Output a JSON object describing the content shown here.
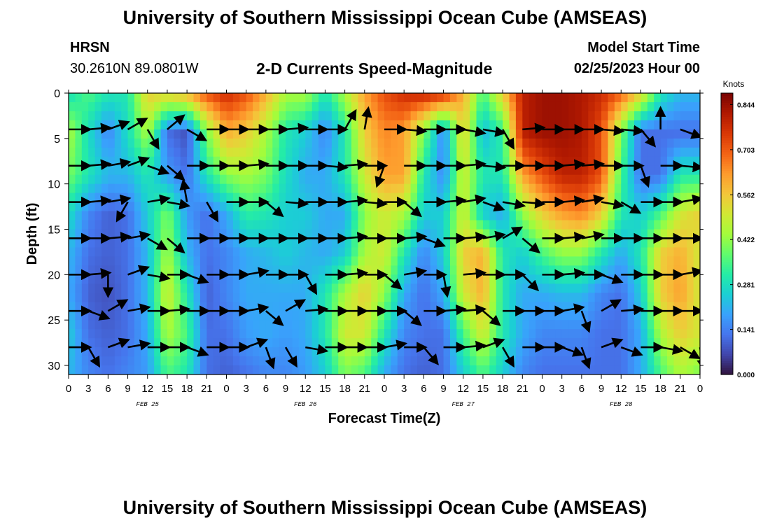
{
  "header": {
    "title": "University of Southern Mississippi Ocean Cube (AMSEAS)",
    "station": "HRSN",
    "coords": "30.2610N  89.0801W",
    "chart_title": "2-D Currents Speed-Magnitude",
    "model_label": "Model Start Time",
    "model_time": "02/25/2023 Hour 00"
  },
  "footer": {
    "title": "University of Southern Mississippi Ocean Cube (AMSEAS)"
  },
  "chart_data": {
    "type": "heatmap",
    "title": "2-D Currents Speed-Magnitude",
    "xlabel": "Forecast Time(Z)",
    "ylabel": "Depth (ft)",
    "x_range": [
      0,
      96
    ],
    "y_range": [
      0,
      31
    ],
    "x_ticks": [
      "0",
      "3",
      "6",
      "9",
      "12",
      "15",
      "18",
      "21",
      "0",
      "3",
      "6",
      "9",
      "12",
      "15",
      "18",
      "21",
      "0",
      "3",
      "6",
      "9",
      "12",
      "15",
      "18",
      "21",
      "0",
      "3",
      "6",
      "9",
      "12",
      "15",
      "18",
      "21",
      "0"
    ],
    "y_ticks": [
      "0",
      "5",
      "10",
      "15",
      "20",
      "25",
      "30"
    ],
    "date_labels": [
      {
        "label": "FEB 25",
        "hour": 12
      },
      {
        "label": "FEB 26",
        "hour": 36
      },
      {
        "label": "FEB 27",
        "hour": 60
      },
      {
        "label": "FEB 28",
        "hour": 84
      }
    ],
    "colorbar": {
      "unit": "Knots",
      "min": 0.0,
      "max": 0.88,
      "ticks": [
        "0.844",
        "0.703",
        "0.562",
        "0.422",
        "0.281",
        "0.141",
        "0.000"
      ],
      "tick_values": [
        0.844,
        0.703,
        0.562,
        0.422,
        0.281,
        0.141,
        0.0
      ]
    },
    "color_scale": [
      "#30123b",
      "#4145ab",
      "#4675ed",
      "#39a2fc",
      "#1bcfd4",
      "#24eca6",
      "#61fc6c",
      "#a4fc3b",
      "#d1e834",
      "#f3c63a",
      "#fe9b2d",
      "#f36315",
      "#d93806",
      "#b11901",
      "#7a0403"
    ],
    "arrow_color": "#000000",
    "vector_depths_ft": [
      4,
      8,
      12,
      16,
      20,
      24,
      28
    ],
    "speed_field_knots": [
      [
        0.28,
        0.36,
        0.3,
        0.3,
        0.55,
        0.55,
        0.6,
        0.72,
        0.78,
        0.72,
        0.6,
        0.45,
        0.45,
        0.3,
        0.45,
        0.62,
        0.72,
        0.78,
        0.8,
        0.78,
        0.6,
        0.35,
        0.55,
        0.8,
        0.84,
        0.84,
        0.82,
        0.78,
        0.7,
        0.55,
        0.3,
        0.22,
        0.22
      ],
      [
        0.45,
        0.28,
        0.15,
        0.28,
        0.45,
        0.12,
        0.08,
        0.4,
        0.6,
        0.55,
        0.45,
        0.3,
        0.25,
        0.15,
        0.3,
        0.55,
        0.65,
        0.62,
        0.4,
        0.15,
        0.55,
        0.22,
        0.32,
        0.8,
        0.84,
        0.84,
        0.82,
        0.72,
        0.4,
        0.12,
        0.12,
        0.12,
        0.12
      ],
      [
        0.4,
        0.3,
        0.22,
        0.22,
        0.3,
        0.18,
        0.12,
        0.3,
        0.42,
        0.45,
        0.4,
        0.28,
        0.2,
        0.2,
        0.3,
        0.5,
        0.62,
        0.62,
        0.3,
        0.15,
        0.5,
        0.3,
        0.3,
        0.62,
        0.72,
        0.8,
        0.8,
        0.72,
        0.35,
        0.12,
        0.12,
        0.3,
        0.3
      ],
      [
        0.28,
        0.15,
        0.1,
        0.12,
        0.25,
        0.4,
        0.18,
        0.12,
        0.2,
        0.32,
        0.3,
        0.25,
        0.25,
        0.2,
        0.2,
        0.42,
        0.5,
        0.45,
        0.25,
        0.25,
        0.5,
        0.25,
        0.2,
        0.42,
        0.55,
        0.62,
        0.65,
        0.55,
        0.3,
        0.25,
        0.35,
        0.5,
        0.55
      ],
      [
        0.22,
        0.12,
        0.1,
        0.12,
        0.22,
        0.45,
        0.22,
        0.12,
        0.15,
        0.2,
        0.22,
        0.25,
        0.22,
        0.2,
        0.25,
        0.45,
        0.5,
        0.3,
        0.15,
        0.25,
        0.55,
        0.6,
        0.3,
        0.25,
        0.35,
        0.42,
        0.42,
        0.3,
        0.2,
        0.3,
        0.55,
        0.6,
        0.5
      ],
      [
        0.2,
        0.1,
        0.08,
        0.12,
        0.22,
        0.5,
        0.3,
        0.1,
        0.15,
        0.2,
        0.2,
        0.2,
        0.2,
        0.3,
        0.45,
        0.55,
        0.42,
        0.2,
        0.12,
        0.2,
        0.5,
        0.6,
        0.3,
        0.2,
        0.2,
        0.22,
        0.22,
        0.15,
        0.12,
        0.25,
        0.55,
        0.62,
        0.5
      ],
      [
        0.25,
        0.12,
        0.1,
        0.12,
        0.2,
        0.45,
        0.35,
        0.12,
        0.12,
        0.18,
        0.2,
        0.18,
        0.2,
        0.3,
        0.5,
        0.5,
        0.3,
        0.15,
        0.12,
        0.12,
        0.35,
        0.5,
        0.3,
        0.2,
        0.15,
        0.15,
        0.15,
        0.12,
        0.12,
        0.2,
        0.45,
        0.55,
        0.5
      ],
      [
        0.22,
        0.15,
        0.12,
        0.15,
        0.18,
        0.35,
        0.3,
        0.12,
        0.1,
        0.12,
        0.15,
        0.15,
        0.18,
        0.25,
        0.4,
        0.35,
        0.2,
        0.12,
        0.1,
        0.12,
        0.25,
        0.35,
        0.25,
        0.15,
        0.12,
        0.12,
        0.12,
        0.12,
        0.12,
        0.2,
        0.35,
        0.45,
        0.4
      ]
    ],
    "field_depths_ft": [
      0,
      4.4,
      8.9,
      13.3,
      17.7,
      22.1,
      26.6,
      31
    ],
    "vector_directions_deg": [
      [
        0,
        5,
        20,
        30,
        -60,
        40,
        -30,
        0,
        0,
        0,
        0,
        5,
        0,
        0,
        60,
        80,
        0,
        -5,
        0,
        0,
        -10,
        -10,
        -60,
        5,
        0,
        0,
        0,
        -5,
        -5,
        -50,
        90,
        -20,
        -10
      ],
      [
        0,
        5,
        10,
        20,
        -20,
        -40,
        0,
        0,
        0,
        5,
        0,
        0,
        0,
        -5,
        5,
        0,
        -110,
        0,
        0,
        0,
        5,
        -5,
        0,
        0,
        0,
        5,
        5,
        0,
        0,
        -70,
        0,
        -5,
        0
      ],
      [
        0,
        5,
        10,
        -120,
        10,
        -10,
        100,
        -60,
        0,
        0,
        -40,
        -5,
        0,
        0,
        5,
        -5,
        0,
        -40,
        0,
        5,
        10,
        -20,
        -10,
        -5,
        0,
        5,
        10,
        -10,
        -30,
        0,
        0,
        10,
        10
      ],
      [
        0,
        0,
        5,
        10,
        -30,
        -40,
        0,
        0,
        0,
        0,
        0,
        0,
        0,
        0,
        5,
        0,
        0,
        5,
        -20,
        0,
        5,
        10,
        30,
        -40,
        0,
        5,
        10,
        0,
        0,
        0,
        0,
        0,
        -20
      ],
      [
        0,
        5,
        -90,
        20,
        -10,
        0,
        -20,
        0,
        0,
        10,
        0,
        0,
        -60,
        0,
        5,
        0,
        -40,
        10,
        0,
        -80,
        5,
        0,
        0,
        -45,
        0,
        5,
        0,
        -20,
        0,
        0,
        0,
        10,
        -40
      ],
      [
        0,
        -20,
        30,
        10,
        0,
        5,
        0,
        0,
        0,
        10,
        -40,
        30,
        5,
        0,
        0,
        0,
        0,
        -40,
        0,
        5,
        5,
        -40,
        0,
        0,
        0,
        10,
        -70,
        30,
        5,
        0,
        0,
        0,
        -60
      ],
      [
        0,
        -60,
        20,
        10,
        0,
        0,
        -20,
        0,
        0,
        20,
        -70,
        -60,
        -10,
        0,
        0,
        0,
        10,
        0,
        -50,
        0,
        5,
        20,
        -60,
        0,
        0,
        -20,
        -70,
        20,
        -20,
        0,
        -10,
        -30,
        -80
      ]
    ]
  }
}
